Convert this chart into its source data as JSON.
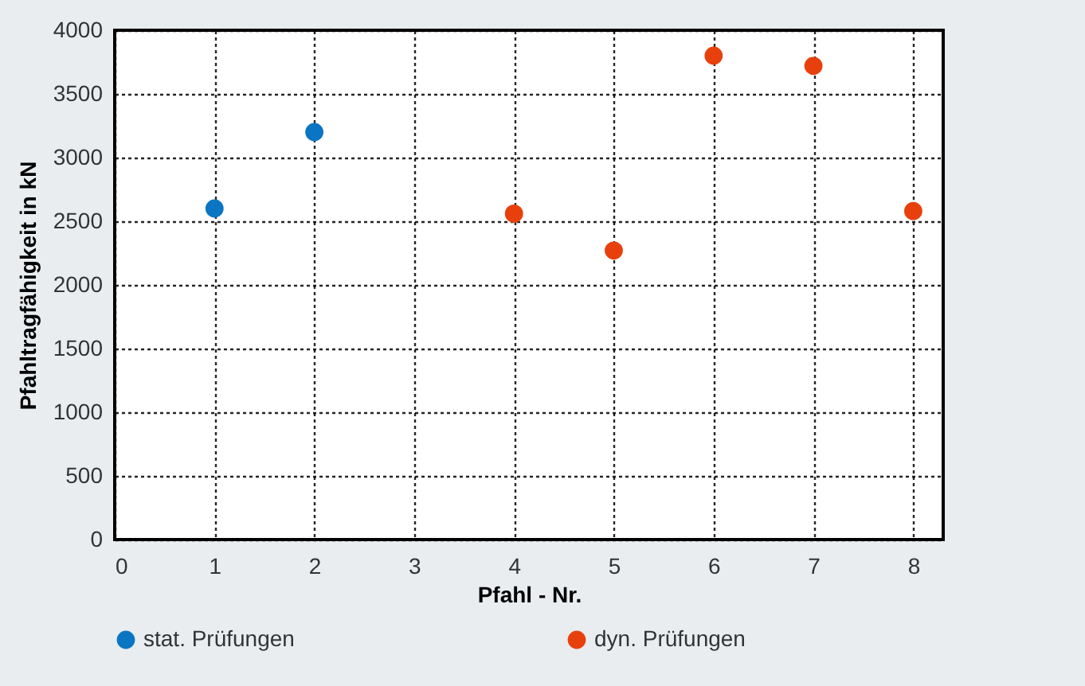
{
  "chart_data": {
    "type": "scatter",
    "xlabel": "Pfahl - Nr.",
    "ylabel": "Pfahltragfähigkeit in kN",
    "series": [
      {
        "name": "stat. Prüfungen",
        "color": "#0a75c2",
        "x": [
          1,
          2
        ],
        "values": [
          2600,
          3200
        ]
      },
      {
        "name": "dyn. Prüfungen",
        "color": "#e8400c",
        "x": [
          4,
          5,
          6,
          7,
          8
        ],
        "values": [
          2560,
          2270,
          3800,
          3720,
          2580
        ]
      }
    ],
    "xlim": [
      0,
      8.3
    ],
    "xticks": [
      0,
      1,
      2,
      3,
      4,
      5,
      6,
      7,
      8
    ],
    "ylim": [
      0,
      4000
    ],
    "yticks": [
      0,
      500,
      1000,
      1500,
      2000,
      2500,
      3000,
      3500,
      4000
    ],
    "grid": true,
    "legend": "bottom",
    "marker": "circle"
  }
}
